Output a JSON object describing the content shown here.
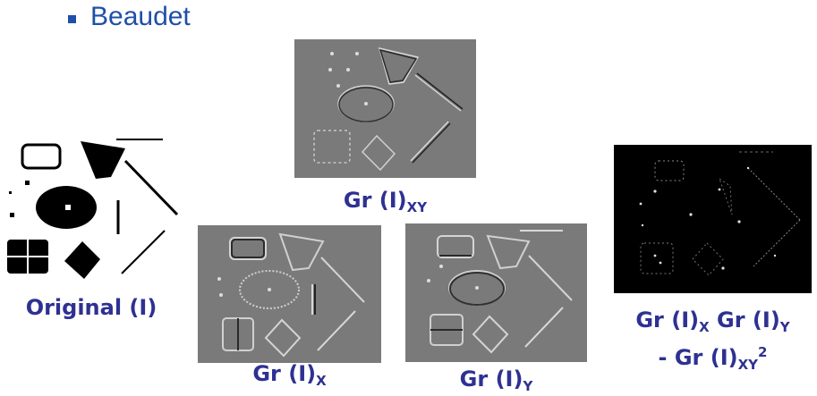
{
  "slide": {
    "bullet": "Beaudet"
  },
  "panels": {
    "original": {
      "label": "Original (I)"
    },
    "gr_xy": {
      "label_main": "Gr (I)",
      "label_sub": "XY"
    },
    "gr_x": {
      "label_main": "Gr (I)",
      "label_sub": "X"
    },
    "gr_y": {
      "label_main": "Gr (I)",
      "label_sub": "Y"
    },
    "result": {
      "line1_part1": "Gr (I)",
      "line1_sub1": "X",
      "line1_part2": " Gr (I)",
      "line1_sub2": "Y",
      "line2_part1": "- Gr (I)",
      "line2_sub": "XY",
      "line2_sup": "2"
    }
  },
  "colors": {
    "bullet": "#1f4fa8",
    "caption": "#2e3192",
    "gradient_bg": "#7a7a7a",
    "result_bg": "#000000"
  }
}
